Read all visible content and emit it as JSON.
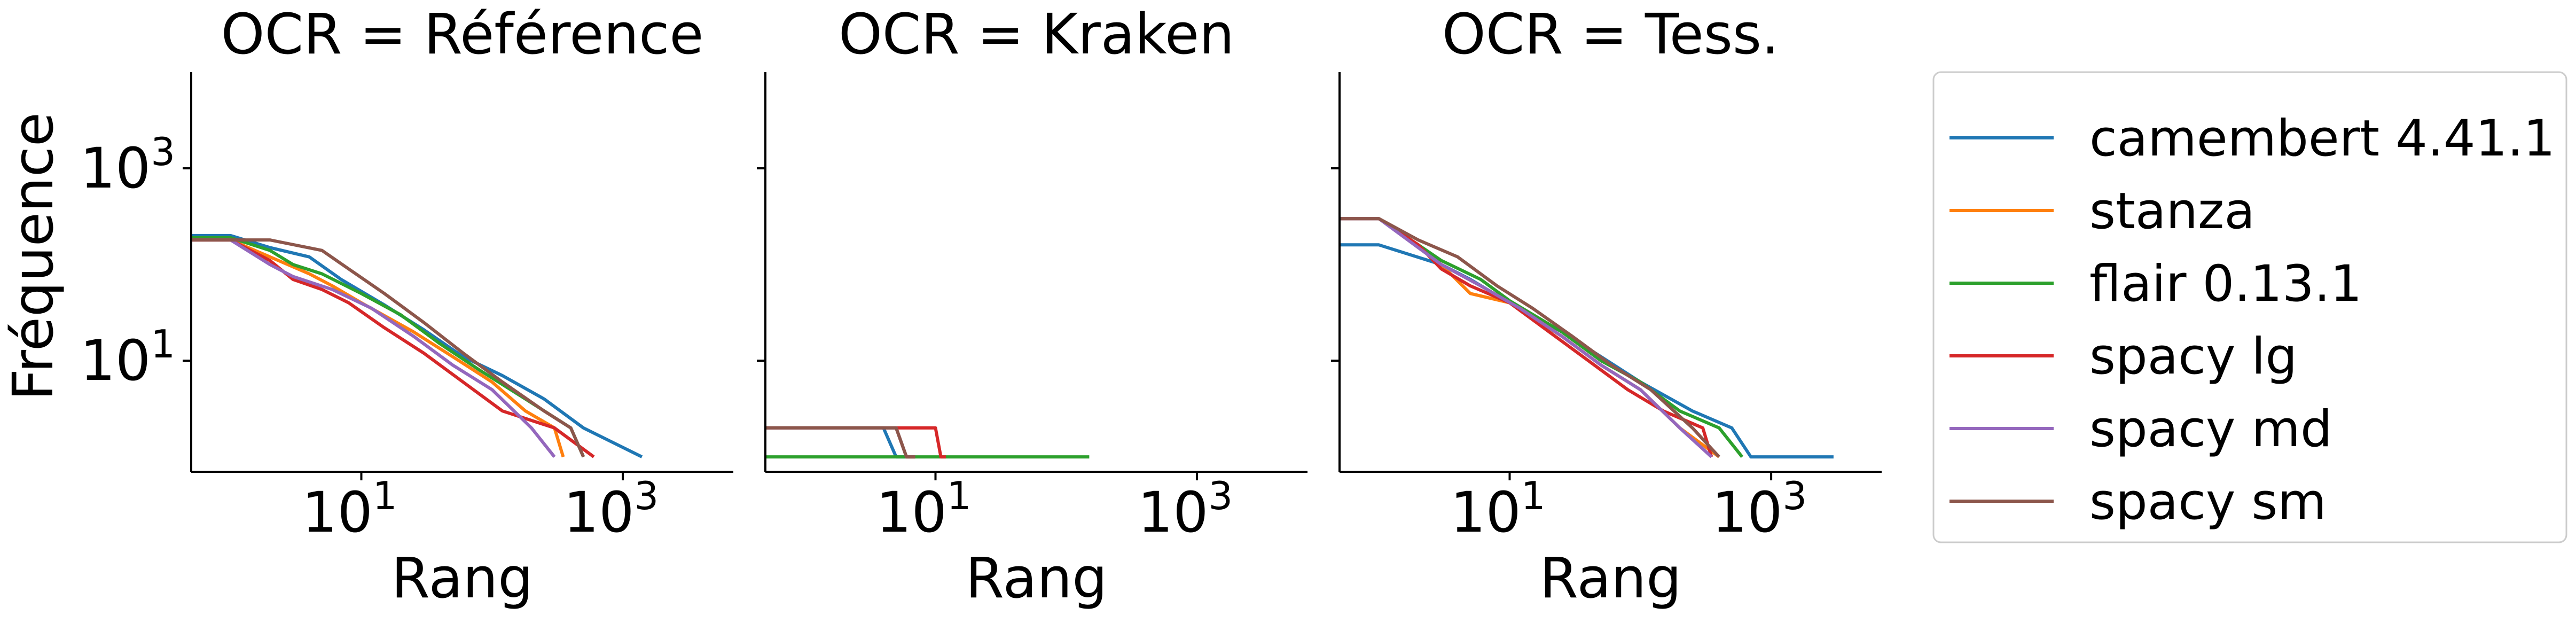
{
  "chart_data": {
    "type": "line",
    "y_label": "Fréquence",
    "x_scale": "log",
    "y_scale": "log",
    "xlim": [
      0.5,
      7000
    ],
    "ylim": [
      0.7,
      10000
    ],
    "x_ticks": [
      {
        "value": 10,
        "base": "10",
        "exp": "1"
      },
      {
        "value": 1000,
        "base": "10",
        "exp": "3"
      }
    ],
    "y_ticks": [
      {
        "value": 10,
        "base": "10",
        "exp": "1"
      },
      {
        "value": 1000,
        "base": "10",
        "exp": "3"
      }
    ],
    "legend_position": "right",
    "legend": [
      {
        "name": "camembert 4.41.1",
        "color": "#1f77b4"
      },
      {
        "name": "stanza",
        "color": "#ff7f0e"
      },
      {
        "name": "flair 0.13.1",
        "color": "#2ca02c"
      },
      {
        "name": "spacy lg",
        "color": "#d62728"
      },
      {
        "name": "spacy md",
        "color": "#9467bd"
      },
      {
        "name": "spacy sm",
        "color": "#8c564b"
      }
    ],
    "panels": [
      {
        "title": "OCR = Référence",
        "x_label": "Rang",
        "series": [
          {
            "name": "camembert 4.41.1",
            "points": [
              [
                0.5,
                200
              ],
              [
                1,
                200
              ],
              [
                2,
                150
              ],
              [
                4,
                120
              ],
              [
                7,
                70
              ],
              [
                15,
                38
              ],
              [
                30,
                21
              ],
              [
                60,
                11
              ],
              [
                120,
                7
              ],
              [
                250,
                4
              ],
              [
                500,
                2
              ],
              [
                1400,
                1
              ]
            ]
          },
          {
            "name": "stanza",
            "points": [
              [
                0.5,
                180
              ],
              [
                1,
                180
              ],
              [
                2,
                120
              ],
              [
                4,
                80
              ],
              [
                6,
                60
              ],
              [
                10,
                40
              ],
              [
                25,
                20
              ],
              [
                50,
                11
              ],
              [
                100,
                6
              ],
              [
                180,
                3
              ],
              [
                300,
                2
              ],
              [
                350,
                1
              ]
            ]
          },
          {
            "name": "flair 0.13.1",
            "points": [
              [
                0.5,
                190
              ],
              [
                1,
                190
              ],
              [
                2,
                140
              ],
              [
                3,
                100
              ],
              [
                5,
                80
              ],
              [
                10,
                50
              ],
              [
                20,
                30
              ],
              [
                40,
                15
              ],
              [
                80,
                8
              ],
              [
                180,
                4
              ],
              [
                400,
                2
              ],
              [
                500,
                1
              ]
            ]
          },
          {
            "name": "spacy lg",
            "points": [
              [
                0.5,
                180
              ],
              [
                1,
                180
              ],
              [
                2,
                110
              ],
              [
                3,
                70
              ],
              [
                5,
                55
              ],
              [
                8,
                40
              ],
              [
                15,
                22
              ],
              [
                30,
                12
              ],
              [
                60,
                6
              ],
              [
                120,
                3
              ],
              [
                300,
                2
              ],
              [
                600,
                1
              ]
            ]
          },
          {
            "name": "spacy md",
            "points": [
              [
                0.5,
                180
              ],
              [
                1,
                180
              ],
              [
                2,
                100
              ],
              [
                3,
                75
              ],
              [
                6,
                55
              ],
              [
                12,
                35
              ],
              [
                25,
                18
              ],
              [
                50,
                9
              ],
              [
                100,
                5
              ],
              [
                200,
                2
              ],
              [
                300,
                1
              ]
            ]
          },
          {
            "name": "spacy sm",
            "points": [
              [
                0.5,
                180
              ],
              [
                2,
                180
              ],
              [
                5,
                140
              ],
              [
                8,
                90
              ],
              [
                15,
                50
              ],
              [
                30,
                25
              ],
              [
                60,
                12
              ],
              [
                120,
                6
              ],
              [
                250,
                3
              ],
              [
                400,
                2
              ],
              [
                500,
                1
              ]
            ]
          }
        ]
      },
      {
        "title": "OCR = Kraken",
        "x_label": "Rang",
        "series": [
          {
            "name": "camembert 4.41.1",
            "points": [
              [
                0.5,
                2
              ],
              [
                4,
                2
              ],
              [
                5,
                1
              ],
              [
                6,
                1
              ]
            ]
          },
          {
            "name": "stanza",
            "points": [
              [
                0.5,
                2
              ],
              [
                5,
                2
              ],
              [
                6,
                1
              ],
              [
                7,
                1
              ]
            ]
          },
          {
            "name": "flair 0.13.1",
            "points": [
              [
                0.5,
                1
              ],
              [
                150,
                1
              ]
            ]
          },
          {
            "name": "spacy lg",
            "points": [
              [
                0.5,
                2
              ],
              [
                10,
                2
              ],
              [
                11,
                1
              ],
              [
                12,
                1
              ]
            ]
          },
          {
            "name": "spacy md",
            "points": [
              [
                0.5,
                2
              ],
              [
                5,
                2
              ],
              [
                6,
                1
              ],
              [
                7,
                1
              ]
            ]
          },
          {
            "name": "spacy sm",
            "points": [
              [
                0.5,
                2
              ],
              [
                5,
                2
              ],
              [
                6,
                1
              ],
              [
                7,
                1
              ]
            ]
          }
        ]
      },
      {
        "title": "OCR = Tess.",
        "x_label": "Rang",
        "series": [
          {
            "name": "camembert 4.41.1",
            "points": [
              [
                0.5,
                160
              ],
              [
                1,
                160
              ],
              [
                3,
                100
              ],
              [
                5,
                70
              ],
              [
                10,
                40
              ],
              [
                25,
                20
              ],
              [
                50,
                11
              ],
              [
                100,
                6
              ],
              [
                250,
                3
              ],
              [
                500,
                2
              ],
              [
                700,
                1
              ],
              [
                3000,
                1
              ]
            ]
          },
          {
            "name": "stanza",
            "points": [
              [
                0.5,
                300
              ],
              [
                1,
                300
              ],
              [
                2,
                160
              ],
              [
                3,
                100
              ],
              [
                5,
                50
              ],
              [
                10,
                40
              ],
              [
                25,
                18
              ],
              [
                50,
                9
              ],
              [
                100,
                5
              ],
              [
                200,
                2
              ],
              [
                400,
                1
              ]
            ]
          },
          {
            "name": "flair 0.13.1",
            "points": [
              [
                0.5,
                300
              ],
              [
                1,
                300
              ],
              [
                2,
                160
              ],
              [
                3,
                110
              ],
              [
                6,
                70
              ],
              [
                10,
                42
              ],
              [
                25,
                20
              ],
              [
                50,
                10
              ],
              [
                100,
                6
              ],
              [
                200,
                3
              ],
              [
                400,
                2
              ],
              [
                600,
                1
              ]
            ]
          },
          {
            "name": "spacy lg",
            "points": [
              [
                0.5,
                300
              ],
              [
                1,
                300
              ],
              [
                2,
                160
              ],
              [
                3,
                90
              ],
              [
                5,
                60
              ],
              [
                10,
                40
              ],
              [
                20,
                20
              ],
              [
                40,
                10
              ],
              [
                80,
                5
              ],
              [
                150,
                3
              ],
              [
                300,
                2
              ],
              [
                350,
                1
              ]
            ]
          },
          {
            "name": "spacy md",
            "points": [
              [
                0.5,
                300
              ],
              [
                1,
                300
              ],
              [
                2,
                150
              ],
              [
                3,
                100
              ],
              [
                6,
                60
              ],
              [
                12,
                35
              ],
              [
                25,
                18
              ],
              [
                50,
                9
              ],
              [
                100,
                5
              ],
              [
                200,
                2
              ],
              [
                350,
                1
              ]
            ]
          },
          {
            "name": "spacy sm",
            "points": [
              [
                0.5,
                300
              ],
              [
                1,
                300
              ],
              [
                2,
                180
              ],
              [
                4,
                120
              ],
              [
                8,
                60
              ],
              [
                15,
                35
              ],
              [
                30,
                18
              ],
              [
                60,
                9
              ],
              [
                120,
                5
              ],
              [
                250,
                2
              ],
              [
                400,
                1
              ]
            ]
          }
        ]
      }
    ]
  }
}
